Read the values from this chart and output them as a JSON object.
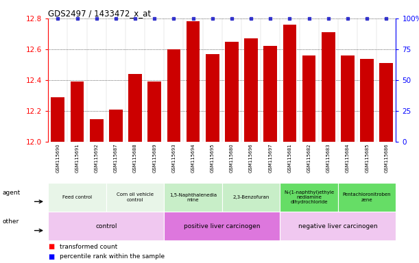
{
  "title": "GDS2497 / 1433472_x_at",
  "samples": [
    "GSM115690",
    "GSM115691",
    "GSM115692",
    "GSM115687",
    "GSM115688",
    "GSM115689",
    "GSM115693",
    "GSM115694",
    "GSM115695",
    "GSM115680",
    "GSM115696",
    "GSM115697",
    "GSM115681",
    "GSM115682",
    "GSM115683",
    "GSM115684",
    "GSM115685",
    "GSM115686"
  ],
  "values": [
    12.29,
    12.39,
    12.15,
    12.21,
    12.44,
    12.39,
    12.6,
    12.78,
    12.57,
    12.65,
    12.67,
    12.62,
    12.76,
    12.56,
    12.71,
    12.56,
    12.54,
    12.51
  ],
  "percentile": [
    100,
    100,
    100,
    100,
    100,
    100,
    100,
    100,
    100,
    100,
    100,
    100,
    100,
    100,
    100,
    100,
    100,
    100
  ],
  "bar_color": "#cc0000",
  "percentile_color": "#3333cc",
  "ylim": [
    12.0,
    12.8
  ],
  "yticks": [
    12.0,
    12.2,
    12.4,
    12.6,
    12.8
  ],
  "right_yticks": [
    0,
    25,
    50,
    75,
    100
  ],
  "right_ylim": [
    0,
    100
  ],
  "agent_groups": [
    {
      "label": "Feed control",
      "start": 0,
      "end": 3,
      "color": "#e8f5e8"
    },
    {
      "label": "Corn oil vehicle\ncontrol",
      "start": 3,
      "end": 6,
      "color": "#e8f5e8"
    },
    {
      "label": "1,5-Naphthalenedia\nmine",
      "start": 6,
      "end": 9,
      "color": "#c8eec8"
    },
    {
      "label": "2,3-Benzofuran",
      "start": 9,
      "end": 12,
      "color": "#c8eec8"
    },
    {
      "label": "N-(1-naphthyl)ethyle\nnediamine\ndihydrochloride",
      "start": 12,
      "end": 15,
      "color": "#66dd66"
    },
    {
      "label": "Pentachloronitroben\nzene",
      "start": 15,
      "end": 18,
      "color": "#66dd66"
    }
  ],
  "other_groups": [
    {
      "label": "control",
      "start": 0,
      "end": 6,
      "color": "#f0c8f0"
    },
    {
      "label": "positive liver carcinogen",
      "start": 6,
      "end": 12,
      "color": "#dd77dd"
    },
    {
      "label": "negative liver carcinogen",
      "start": 12,
      "end": 18,
      "color": "#f0c8f0"
    }
  ],
  "legend_items": [
    {
      "label": "transformed count",
      "color": "#cc0000"
    },
    {
      "label": "percentile rank within the sample",
      "color": "#3333cc"
    }
  ],
  "sample_bg": "#d8d8d8",
  "border_color": "#888888"
}
